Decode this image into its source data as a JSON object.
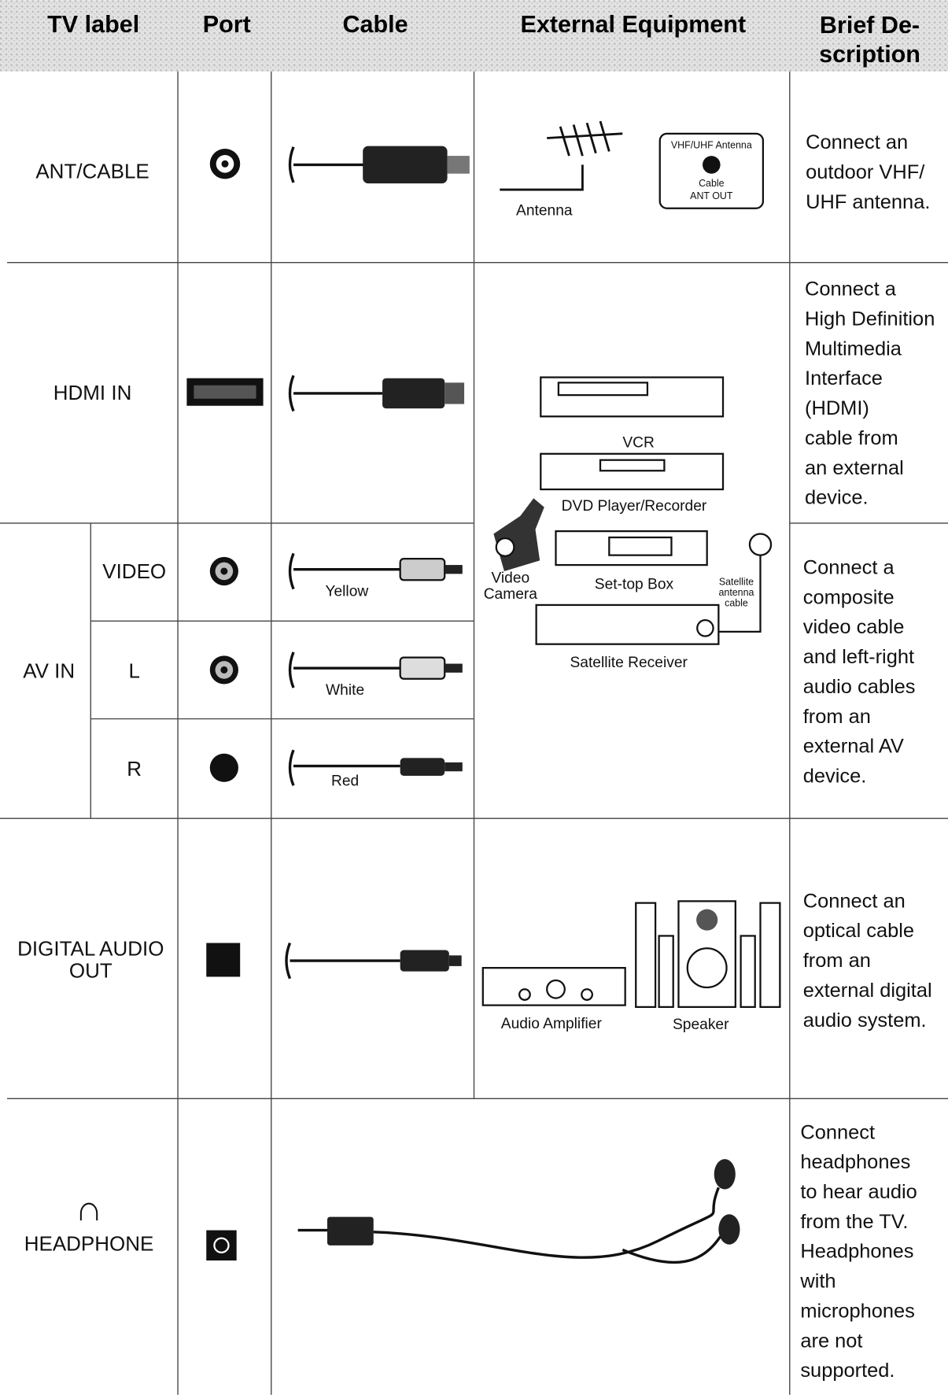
{
  "table": {
    "header": {
      "tv_label": "TV label",
      "port": "Port",
      "cable": "Cable",
      "external_equipment": "External Equipment",
      "brief_description": [
        "Brief De-",
        "scription"
      ]
    },
    "rows": [
      {
        "tv_label": "ANT/CABLE",
        "equipment": {
          "antenna": "Antenna",
          "panel_title": "VHF/UHF Antenna",
          "panel_lines": [
            "Cable",
            "ANT OUT"
          ]
        },
        "description": [
          "Connect an",
          "outdoor VHF/",
          "UHF antenna."
        ]
      },
      {
        "tv_label": "HDMI IN",
        "description": [
          "Connect a",
          "High Definition",
          "Multimedia",
          "Interface",
          "(HDMI)",
          "cable from",
          "an external",
          "device."
        ]
      },
      {
        "tv_label": "AV IN",
        "inputs": [
          {
            "label": "VIDEO",
            "cable_color": "Yellow"
          },
          {
            "label": "L",
            "cable_color": "White"
          },
          {
            "label": "R",
            "cable_color": "Red"
          }
        ],
        "description": [
          "Connect a",
          "composite",
          "video cable",
          "and left-right",
          "audio cables",
          "from an",
          "external AV",
          "device."
        ]
      },
      {
        "tv_label": [
          "DIGITAL AUDIO",
          "OUT"
        ],
        "equipment": {
          "amplifier": "Audio Amplifier",
          "speaker": "Speaker"
        },
        "description": [
          "Connect an",
          "optical cable",
          "from an",
          "external digital",
          "audio system."
        ]
      },
      {
        "tv_label": "HEADPHONE",
        "description": [
          "Connect",
          "headphones",
          "to hear audio",
          "from the TV.",
          "Headphones",
          "with",
          "microphones",
          "are not",
          "supported."
        ]
      }
    ],
    "av_equipment": {
      "vcr": "VCR",
      "dvd": "DVD Player/Recorder",
      "camera": [
        "Video",
        "Camera"
      ],
      "set_top_box": "Set-top Box",
      "satellite_cable": [
        "Satellite",
        "antenna",
        "cable"
      ],
      "satellite_receiver": "Satellite Receiver"
    }
  }
}
